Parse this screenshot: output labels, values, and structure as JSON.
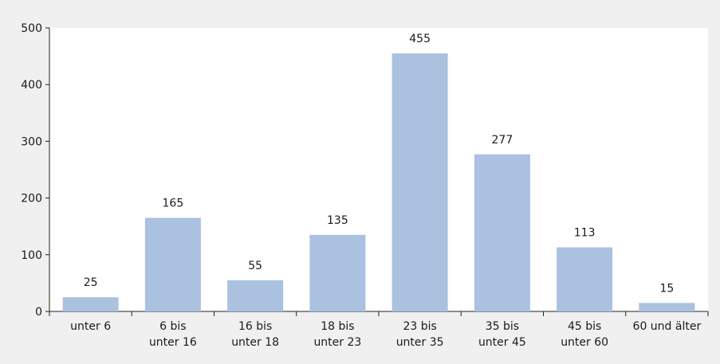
{
  "chart_data": {
    "type": "bar",
    "categories": [
      [
        "unter 6"
      ],
      [
        "6 bis",
        "unter 16"
      ],
      [
        "16 bis",
        "unter 18"
      ],
      [
        "18 bis",
        "unter 23"
      ],
      [
        "23 bis",
        "unter 35"
      ],
      [
        "35 bis",
        "unter 45"
      ],
      [
        "45 bis",
        "unter 60"
      ],
      [
        "60 und älter"
      ]
    ],
    "values": [
      25,
      165,
      55,
      135,
      455,
      277,
      113,
      15
    ],
    "ylim": [
      0,
      500
    ],
    "yticks": [
      0,
      100,
      200,
      300,
      400,
      500
    ],
    "title": "",
    "xlabel": "",
    "ylabel": "",
    "grid": false,
    "bar_color": "#aac1e0",
    "plot_bg": "#ffffff",
    "page_bg": "#f0f0f0"
  }
}
